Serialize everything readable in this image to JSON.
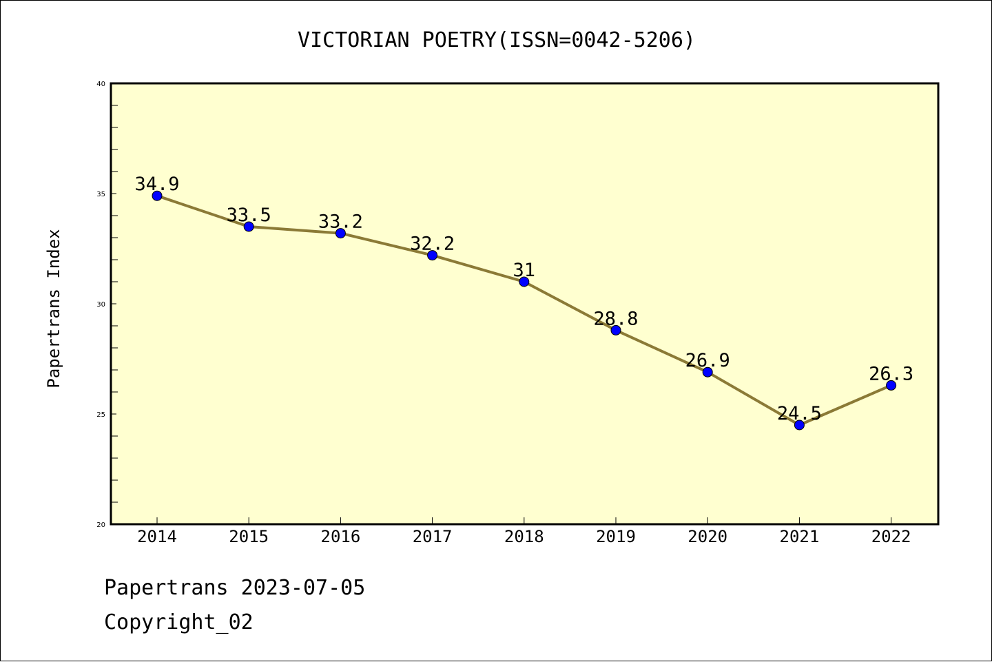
{
  "chart_data": {
    "type": "line",
    "title": "VICTORIAN POETRY(ISSN=0042-5206)",
    "xlabel": "",
    "ylabel": "Papertrans Index",
    "categories": [
      "2014",
      "2015",
      "2016",
      "2017",
      "2018",
      "2019",
      "2020",
      "2021",
      "2022"
    ],
    "series": [
      {
        "values": [
          34.9,
          33.5,
          33.2,
          32.2,
          31,
          28.8,
          26.9,
          24.5,
          26.3
        ],
        "data_labels": [
          "34.9",
          "33.5",
          "33.2",
          "32.2",
          "31",
          "28.8",
          "26.9",
          "24.5",
          "26.3"
        ]
      }
    ],
    "ylim": [
      20,
      40
    ],
    "yticks": [
      "20",
      "25",
      "30",
      "35",
      "40"
    ],
    "grid": false,
    "colors": {
      "line": "#8b7a36",
      "marker": "#0000ff",
      "plot_background": "#ffffd0"
    }
  },
  "footer": {
    "line1": "Papertrans 2023-07-05",
    "line2": "Copyright_02"
  }
}
